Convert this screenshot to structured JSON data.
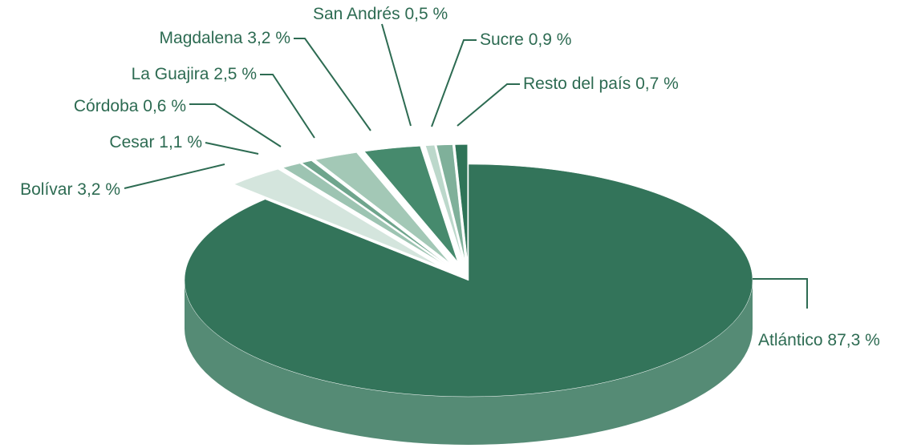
{
  "chart_data": {
    "type": "pie",
    "categories": [
      "Atlántico",
      "Bolívar",
      "Cesar",
      "Córdoba",
      "La Guajira",
      "Magdalena",
      "San Andrés",
      "Sucre",
      "Resto del país"
    ],
    "values": [
      87.3,
      3.2,
      1.1,
      0.6,
      2.5,
      3.2,
      0.5,
      0.9,
      0.7
    ],
    "value_labels": [
      "87,3 %",
      "3,2 %",
      "1,1 %",
      "0,6 %",
      "2,5 %",
      "3,2 %",
      "0,5 %",
      "0,9 %",
      "0,7 %"
    ],
    "colors": [
      "#33745a",
      "#d4e5dd",
      "#9dc4b2",
      "#6fa58d",
      "#a3c8b6",
      "#468a6d",
      "#bcd8cb",
      "#7fb09a",
      "#2f7458"
    ]
  }
}
